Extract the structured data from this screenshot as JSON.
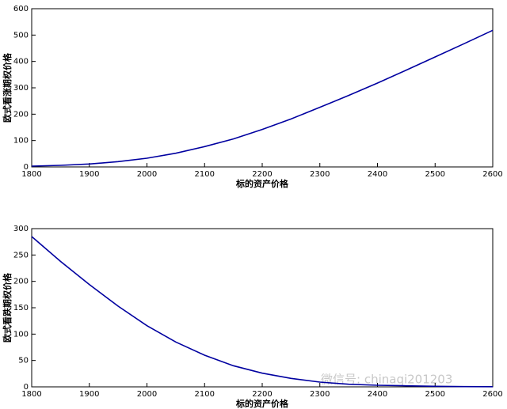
{
  "chart_data": [
    {
      "type": "line",
      "xlabel": "标的资产价格",
      "ylabel": "欧式看涨期权价格",
      "color": "#0000a0",
      "x": [
        1800,
        1850,
        1900,
        1950,
        2000,
        2050,
        2100,
        2150,
        2200,
        2250,
        2300,
        2350,
        2400,
        2450,
        2500,
        2550,
        2600
      ],
      "values": [
        3,
        6,
        11,
        20,
        33,
        52,
        77,
        106,
        142,
        182,
        226,
        271,
        318,
        367,
        417,
        467,
        518
      ],
      "xlim": [
        1800,
        2600
      ],
      "xticks": [
        1800,
        1900,
        2000,
        2100,
        2200,
        2300,
        2400,
        2500,
        2600
      ],
      "ylim": [
        0,
        600
      ],
      "yticks": [
        0,
        100,
        200,
        300,
        400,
        500,
        600
      ]
    },
    {
      "type": "line",
      "xlabel": "标的资产价格",
      "ylabel": "欧式看跌期权价格",
      "color": "#0000a0",
      "x": [
        1800,
        1850,
        1900,
        1950,
        2000,
        2050,
        2100,
        2150,
        2200,
        2250,
        2300,
        2350,
        2400,
        2450,
        2500,
        2550,
        2600
      ],
      "values": [
        285,
        238,
        194,
        153,
        116,
        85,
        60,
        40,
        26,
        16,
        9,
        5,
        3,
        2,
        1,
        0.5,
        0.3
      ],
      "xlim": [
        1800,
        2600
      ],
      "xticks": [
        1800,
        1900,
        2000,
        2100,
        2200,
        2300,
        2400,
        2500,
        2600
      ],
      "ylim": [
        0,
        300
      ],
      "yticks": [
        0,
        50,
        100,
        150,
        200,
        250,
        300
      ]
    }
  ],
  "watermark": "微信号: chinaqi201203"
}
